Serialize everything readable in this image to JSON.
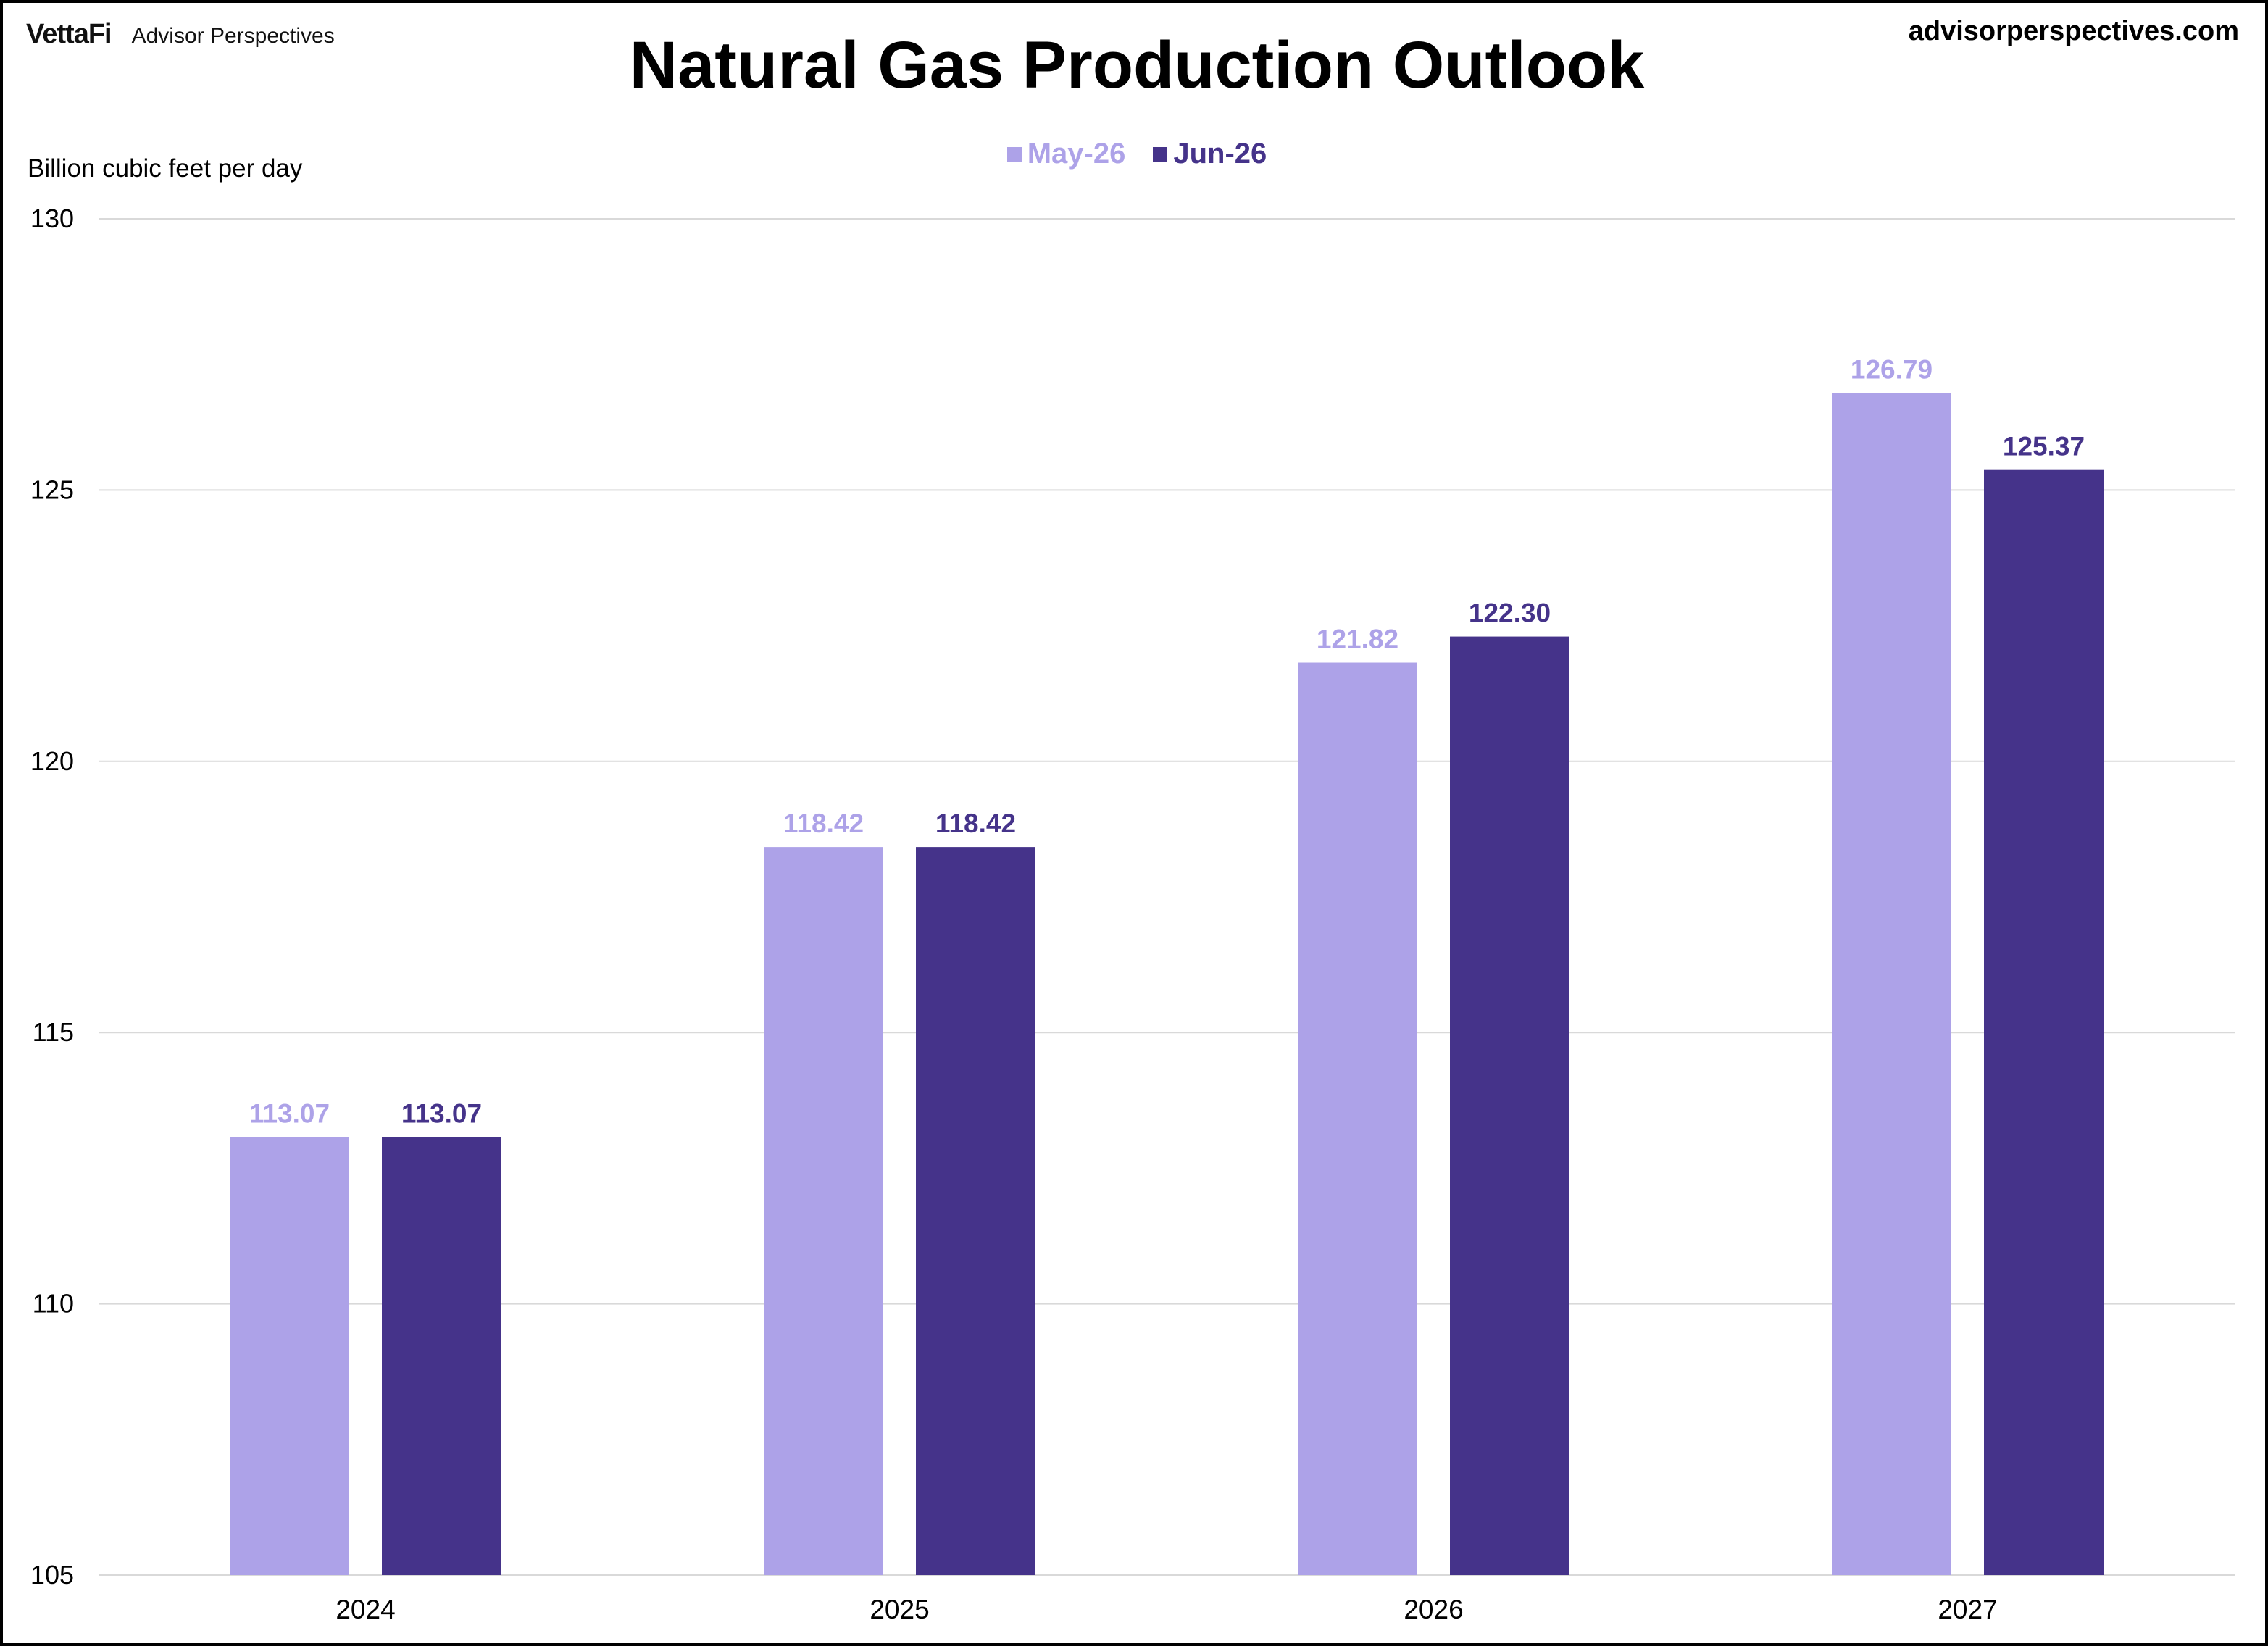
{
  "branding": {
    "logo_mark": "VettaFi",
    "logo_name": "Advisor Perspectives",
    "site": "advisorperspectives.com"
  },
  "chart_data": {
    "type": "bar",
    "title": "Natural Gas Production Outlook",
    "ylabel": "Billion  cubic feet per day",
    "xlabel": "",
    "categories": [
      "2024",
      "2025",
      "2026",
      "2027"
    ],
    "series": [
      {
        "name": "May-26",
        "color": "#ada2e8",
        "values": [
          113.07,
          118.42,
          121.82,
          126.79
        ],
        "labels": [
          "113.07",
          "118.42",
          "121.82",
          "126.79"
        ]
      },
      {
        "name": "Jun-26",
        "color": "#45338a",
        "values": [
          113.07,
          118.42,
          122.3,
          125.37
        ],
        "labels": [
          "113.07",
          "118.42",
          "122.30",
          "125.37"
        ]
      }
    ],
    "ylim": [
      105,
      130
    ],
    "yticks": [
      "105",
      "110",
      "115",
      "120",
      "125",
      "130"
    ],
    "grid": true,
    "gridline_color": "#d9d9d9",
    "legend_position": "top-center"
  }
}
